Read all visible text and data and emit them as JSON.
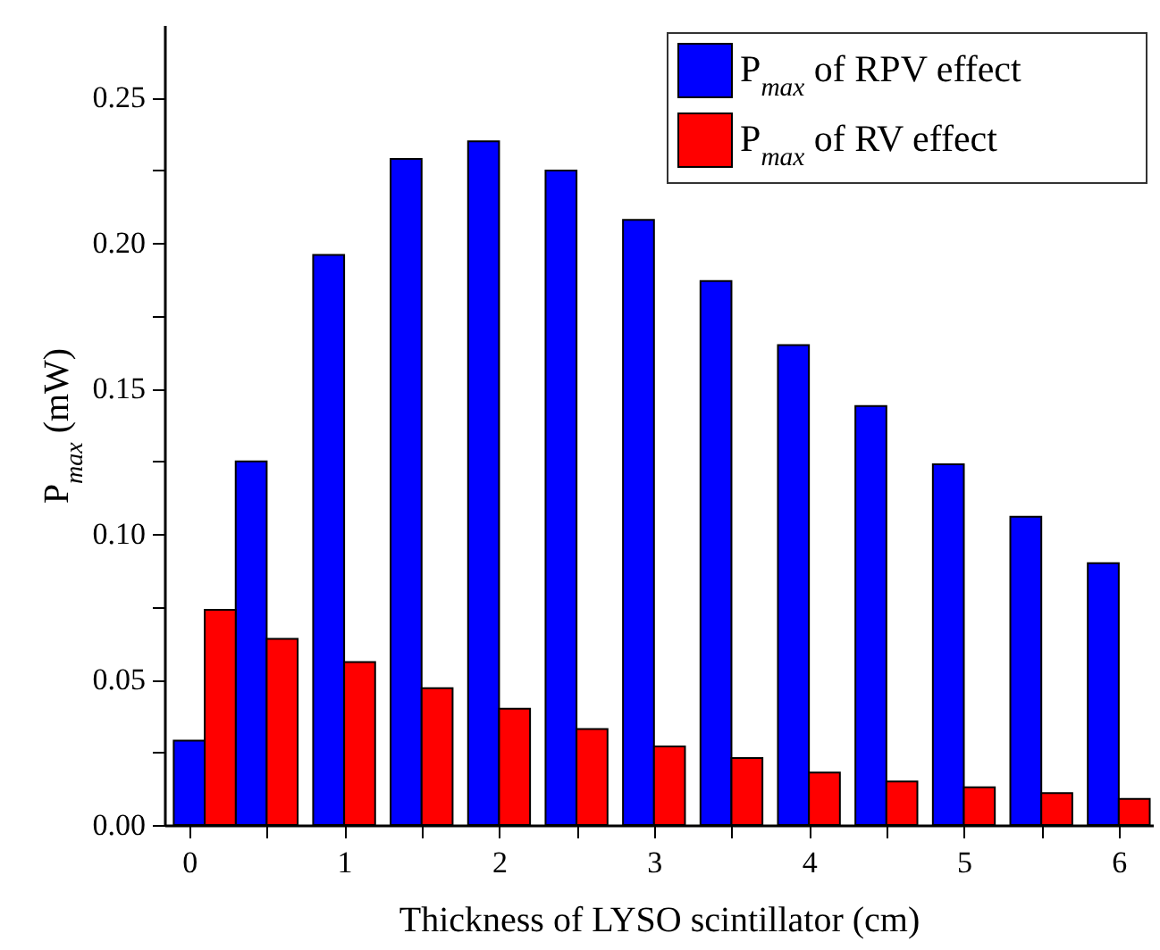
{
  "chart_data": {
    "type": "bar",
    "xlabel": "Thickness of LYSO scintillator (cm)",
    "ylabel": "P$_{max}$ (mW)",
    "x": [
      0.1,
      0.5,
      1,
      1.5,
      2,
      2.5,
      3,
      3.5,
      4,
      4.5,
      5,
      5.5,
      6
    ],
    "series": [
      {
        "name": "P$_{max}$ of RPV effect",
        "color": "#0000ff",
        "values": [
          0.029,
          0.125,
          0.196,
          0.229,
          0.235,
          0.225,
          0.208,
          0.187,
          0.165,
          0.144,
          0.124,
          0.106,
          0.09
        ]
      },
      {
        "name": "P$_{max}$ of RV effect",
        "color": "#ff0000",
        "values": [
          0.074,
          0.064,
          0.056,
          0.047,
          0.04,
          0.033,
          0.027,
          0.023,
          0.018,
          0.015,
          0.013,
          0.011,
          0.009
        ]
      }
    ],
    "xlim": [
      -0.16,
      6.22
    ],
    "xticks": [
      0,
      {
        "value": 0.5,
        "label": null
      },
      1,
      {
        "value": 1.5,
        "label": null
      },
      2,
      {
        "value": 2.5,
        "label": null
      },
      3,
      {
        "value": 3.5,
        "label": null
      },
      4,
      {
        "value": 4.5,
        "label": null
      },
      5,
      {
        "value": 5.5,
        "label": null
      },
      6
    ],
    "ylim": [
      0,
      0.275
    ],
    "yticks": [
      {
        "value": 0,
        "label": "0.00"
      },
      {
        "value": 0.025,
        "label": null
      },
      {
        "value": 0.05,
        "label": "0.05"
      },
      {
        "value": 0.075,
        "label": null
      },
      {
        "value": 0.1,
        "label": "0.10"
      },
      {
        "value": 0.125,
        "label": null
      },
      {
        "value": 0.15,
        "label": "0.15"
      },
      {
        "value": 0.175,
        "label": null
      },
      {
        "value": 0.2,
        "label": "0.20"
      },
      {
        "value": 0.225,
        "label": null
      },
      {
        "value": 0.25,
        "label": "0.25"
      }
    ],
    "legend": "top right",
    "grid": false
  }
}
